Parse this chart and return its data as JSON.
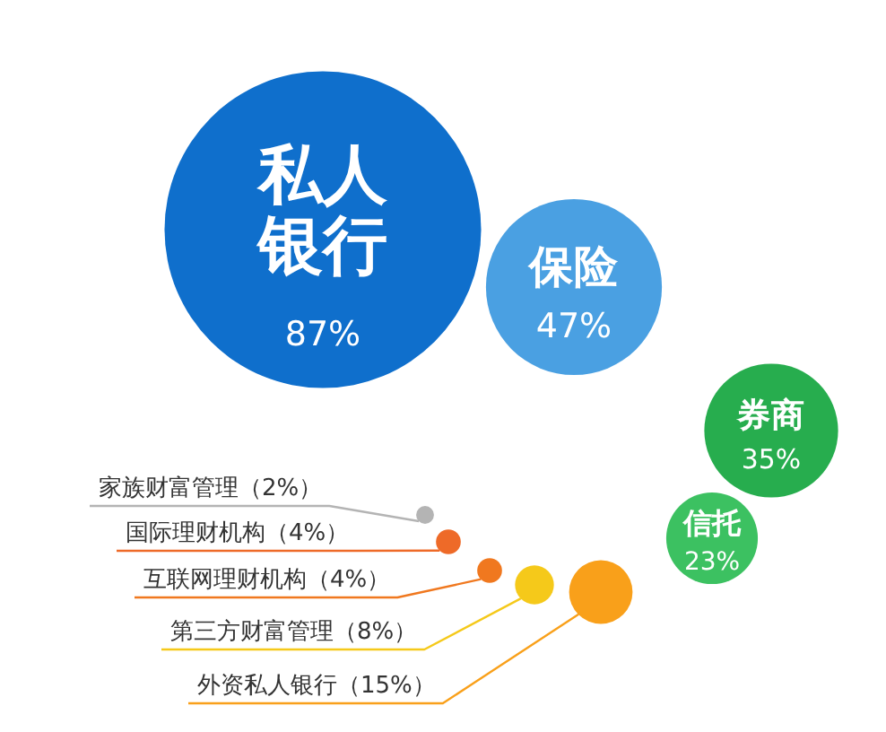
{
  "chart_data": {
    "type": "other",
    "categories": [
      "私人银行",
      "保险",
      "券商",
      "信托",
      "外资私人银行",
      "第三方财富管理",
      "互联网理财机构",
      "国际理财机构",
      "家族财富管理"
    ],
    "values": [
      87,
      47,
      35,
      23,
      15,
      8,
      4,
      4,
      2
    ],
    "value_labels": [
      "87%",
      "47%",
      "35%",
      "23%",
      "（15%）",
      "（8%）",
      "（4%）",
      "（4%）",
      "（2%）"
    ],
    "colors": [
      "#0f6fcc",
      "#4aa0e2",
      "#27ad4e",
      "#3cc161",
      "#f9a01a",
      "#f5c91a",
      "#f0781f",
      "#ee6a28",
      "#b4b4b4"
    ]
  }
}
